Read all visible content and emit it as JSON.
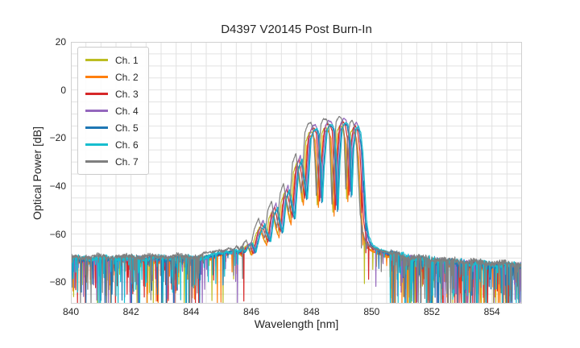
{
  "chart_data": {
    "type": "line",
    "title": "D4397 V20145 Post Burn-In",
    "xlabel": "Wavelength [nm]",
    "ylabel": "Optical Power [dB]",
    "xlim": [
      840,
      855
    ],
    "ylim": [
      -89,
      20
    ],
    "x_ticks": [
      840,
      842,
      844,
      846,
      848,
      850,
      852,
      854
    ],
    "y_ticks": [
      20,
      0,
      -20,
      -40,
      -60,
      -80
    ],
    "x_grid_step": 0.5,
    "y_grid_step": 5,
    "grid": true,
    "legend_position": "upper left",
    "colors": {
      "grid": "#e2e2e2",
      "spine": "#d0d0d0",
      "text": "#262626",
      "background": "#ffffff"
    },
    "sample_step": 0.01,
    "line_width": 1.2,
    "series": [
      {
        "name": "Ch. 1",
        "color": "#bcbd22",
        "lambda_offset": -0.1,
        "db_offset": -3.2,
        "floor_offset": -0.8,
        "seed": 11
      },
      {
        "name": "Ch. 2",
        "color": "#ff7f0e",
        "lambda_offset": -0.06,
        "db_offset": -4.6,
        "floor_offset": -1.2,
        "seed": 22
      },
      {
        "name": "Ch. 3",
        "color": "#d62728",
        "lambda_offset": -0.02,
        "db_offset": -1.6,
        "floor_offset": -0.5,
        "seed": 33
      },
      {
        "name": "Ch. 4",
        "color": "#9467bd",
        "lambda_offset": 0.02,
        "db_offset": -0.2,
        "floor_offset": -0.3,
        "seed": 44
      },
      {
        "name": "Ch. 5",
        "color": "#1f77b4",
        "lambda_offset": 0.05,
        "db_offset": -2.4,
        "floor_offset": -0.2,
        "seed": 55
      },
      {
        "name": "Ch. 6",
        "color": "#17becf",
        "lambda_offset": 0.08,
        "db_offset": -1.9,
        "floor_offset": 0.2,
        "seed": 66
      },
      {
        "name": "Ch. 7",
        "color": "#7f7f7f",
        "lambda_offset": -0.13,
        "db_offset": 0.6,
        "floor_offset": 0.8,
        "seed": 77
      }
    ],
    "canonical_points": [
      [
        839.5,
        -70.3
      ],
      [
        844.35,
        -70.1
      ],
      [
        844.6,
        -69.1
      ],
      [
        844.85,
        -68.1
      ],
      [
        845.05,
        -67.3
      ],
      [
        845.22,
        -67.9
      ],
      [
        845.38,
        -66.9
      ],
      [
        845.52,
        -67.8
      ],
      [
        845.64,
        -66.3
      ],
      [
        845.74,
        -67.6
      ],
      [
        845.84,
        -64.9
      ],
      [
        845.96,
        -63.3
      ],
      [
        846.08,
        -67.8
      ],
      [
        846.23,
        -58.5
      ],
      [
        846.37,
        -54.0
      ],
      [
        846.49,
        -59.5
      ],
      [
        846.57,
        -62.5
      ],
      [
        846.68,
        -50.5
      ],
      [
        846.8,
        -47.0
      ],
      [
        846.91,
        -54.5
      ],
      [
        846.98,
        -58.0
      ],
      [
        847.09,
        -43.5
      ],
      [
        847.2,
        -39.5
      ],
      [
        847.31,
        -47.5
      ],
      [
        847.38,
        -51.5
      ],
      [
        847.5,
        -31.0
      ],
      [
        847.61,
        -27.0
      ],
      [
        847.71,
        -36.0
      ],
      [
        847.79,
        -43.5
      ],
      [
        847.91,
        -18.5
      ],
      [
        848.01,
        -14.8
      ],
      [
        848.11,
        -14.2
      ],
      [
        848.18,
        -16.5
      ],
      [
        848.25,
        -31.0
      ],
      [
        848.29,
        -44.5
      ],
      [
        848.35,
        -29.5
      ],
      [
        848.45,
        -14.6
      ],
      [
        848.53,
        -12.6
      ],
      [
        848.63,
        -12.9
      ],
      [
        848.71,
        -15.5
      ],
      [
        848.77,
        -34.0
      ],
      [
        848.81,
        -48.0
      ],
      [
        848.87,
        -27.5
      ],
      [
        848.95,
        -13.8
      ],
      [
        849.05,
        -11.6
      ],
      [
        849.13,
        -12.4
      ],
      [
        849.21,
        -18.0
      ],
      [
        849.27,
        -42.0
      ],
      [
        849.33,
        -22.0
      ],
      [
        849.41,
        -14.2
      ],
      [
        849.48,
        -13.2
      ],
      [
        849.56,
        -15.8
      ],
      [
        849.63,
        -24.0
      ],
      [
        849.69,
        -38.0
      ],
      [
        849.75,
        -52.0
      ],
      [
        849.83,
        -60.0
      ],
      [
        849.93,
        -64.0
      ],
      [
        850.06,
        -65.8
      ],
      [
        850.26,
        -67.0
      ],
      [
        850.56,
        -68.2
      ],
      [
        850.9,
        -69.3
      ],
      [
        851.3,
        -70.2
      ],
      [
        852.0,
        -71.0
      ],
      [
        853.0,
        -72.0
      ],
      [
        854.0,
        -72.8
      ],
      [
        855.5,
        -73.5
      ]
    ],
    "noise_regions": [
      {
        "from": 840.0,
        "to": 844.35,
        "jitter": 1.2,
        "wobble_amp": 0.5,
        "spike_prob": 0.1,
        "spike_mean": 10,
        "spike_max": 28
      },
      {
        "from": 844.35,
        "to": 845.75,
        "jitter": 0.8,
        "wobble_amp": 0.4,
        "spike_prob": 0.05,
        "spike_mean": 6,
        "spike_max": 20
      },
      {
        "from": 845.75,
        "to": 849.6,
        "jitter": 0.35,
        "wobble_amp": 0.0,
        "spike_prob": 0.0,
        "spike_mean": 0,
        "spike_max": 0
      },
      {
        "from": 849.6,
        "to": 850.6,
        "jitter": 0.5,
        "wobble_amp": 0.0,
        "spike_prob": 0.04,
        "spike_mean": 6,
        "spike_max": 18
      },
      {
        "from": 850.6,
        "to": 855.01,
        "jitter": 1.5,
        "wobble_amp": 0.6,
        "spike_prob": 0.14,
        "spike_mean": 11,
        "spike_max": 28
      }
    ]
  }
}
